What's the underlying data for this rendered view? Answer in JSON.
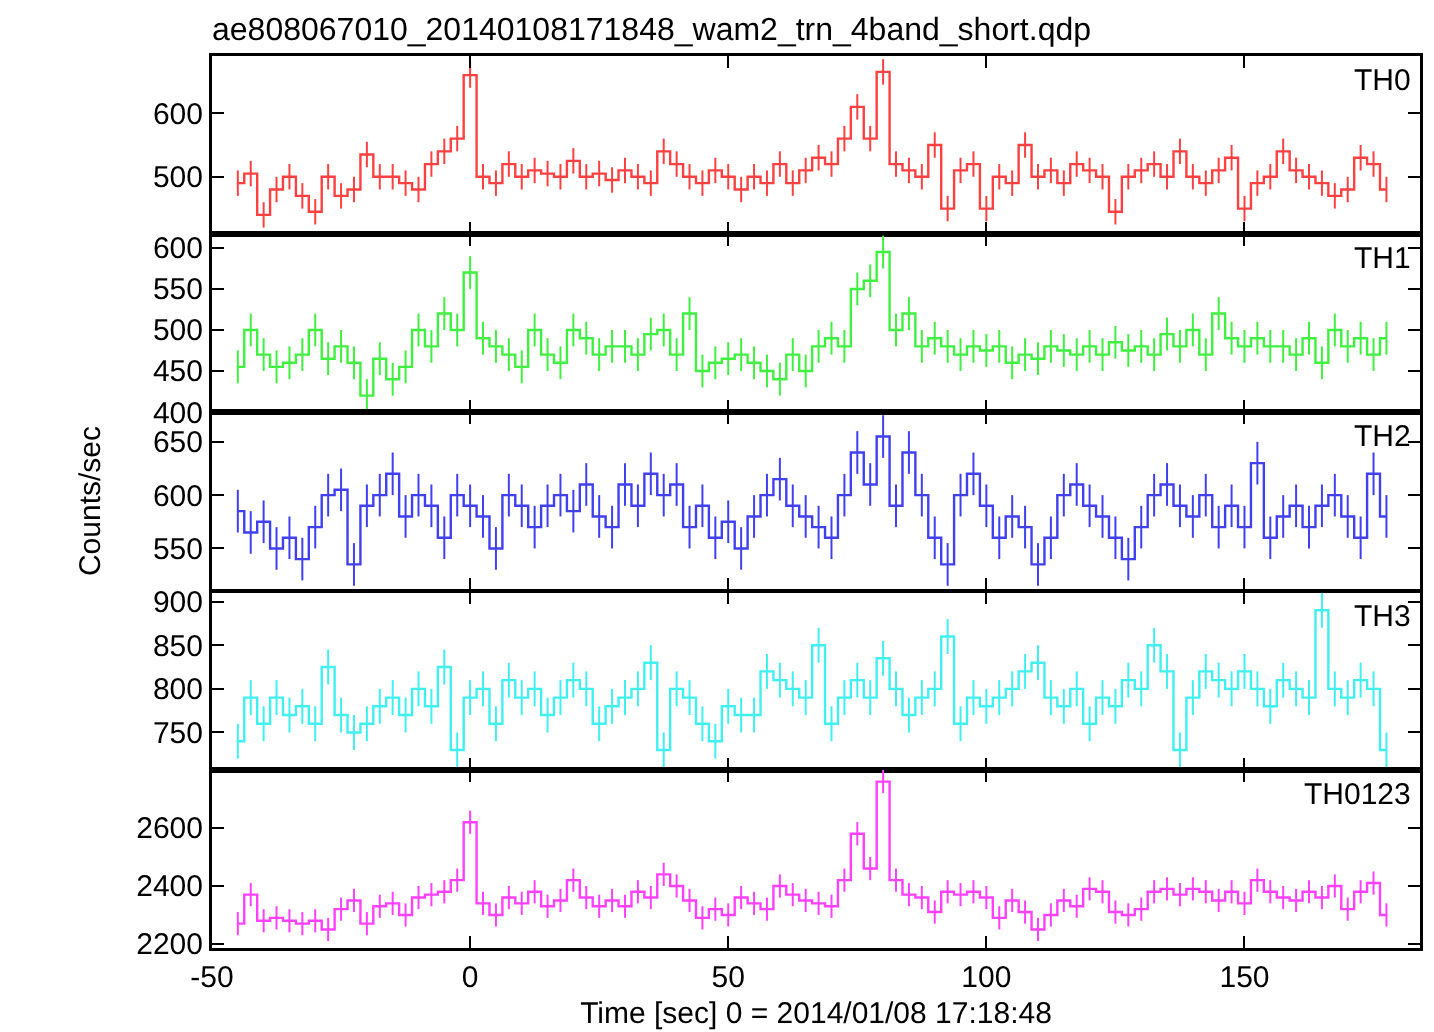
{
  "chart_data": [
    {
      "type": "step",
      "title": "ae808067010_20140108171848_wam2_trn_4band_short.qdp",
      "annotations": [
        "TH0"
      ],
      "tick_labels": "y",
      "xlim": [
        -50,
        184
      ],
      "xticks": [
        -50,
        0,
        50,
        100,
        150
      ],
      "ylim": [
        410,
        690
      ],
      "yticks": [
        500,
        600
      ],
      "x": [
        -45,
        -42.5,
        -40,
        -37.5,
        -35,
        -32.5,
        -30,
        -27.5,
        -25,
        -22.5,
        -20,
        -17.5,
        -15,
        -12.5,
        -10,
        -7.5,
        -5,
        -2.5,
        0,
        2.5,
        5,
        7.5,
        10,
        12.5,
        15,
        17.5,
        20,
        22.5,
        25,
        27.5,
        30,
        32.5,
        35,
        37.5,
        40,
        42.5,
        45,
        47.5,
        50,
        52.5,
        55,
        57.5,
        60,
        62.5,
        65,
        67.5,
        70,
        72.5,
        75,
        77.5,
        80,
        82.5,
        85,
        87.5,
        90,
        92.5,
        95,
        97.5,
        100,
        102.5,
        105,
        107.5,
        110,
        112.5,
        115,
        117.5,
        120,
        122.5,
        125,
        127.5,
        130,
        132.5,
        135,
        137.5,
        140,
        142.5,
        145,
        147.5,
        150,
        152.5,
        155,
        157.5,
        160,
        162.5,
        165,
        167.5,
        170,
        172.5,
        175,
        177.5
      ],
      "series": [
        {
          "color": "#ff4040",
          "values": [
            490,
            505,
            440,
            480,
            500,
            470,
            445,
            500,
            470,
            480,
            535,
            500,
            500,
            490,
            480,
            520,
            540,
            560,
            660,
            500,
            490,
            520,
            500,
            510,
            505,
            500,
            525,
            500,
            505,
            495,
            510,
            500,
            490,
            540,
            520,
            500,
            490,
            510,
            500,
            480,
            500,
            490,
            520,
            490,
            510,
            530,
            520,
            560,
            610,
            560,
            665,
            520,
            510,
            500,
            550,
            450,
            510,
            520,
            450,
            500,
            490,
            550,
            500,
            510,
            490,
            520,
            510,
            500,
            445,
            500,
            510,
            520,
            500,
            540,
            500,
            490,
            510,
            530,
            450,
            490,
            500,
            540,
            510,
            500,
            490,
            470,
            480,
            530,
            520,
            480
          ],
          "errors": [
            20,
            20,
            20,
            20,
            20,
            20,
            20,
            20,
            20,
            20,
            20,
            20,
            20,
            20,
            20,
            20,
            20,
            20,
            20,
            20,
            20,
            20,
            20,
            20,
            20,
            20,
            20,
            20,
            20,
            20,
            20,
            20,
            20,
            20,
            20,
            20,
            20,
            20,
            20,
            20,
            20,
            20,
            20,
            20,
            20,
            20,
            20,
            20,
            20,
            20,
            20,
            20,
            20,
            20,
            20,
            20,
            20,
            20,
            20,
            20,
            20,
            20,
            20,
            20,
            20,
            20,
            20,
            20,
            20,
            20,
            20,
            20,
            20,
            20,
            20,
            20,
            20,
            20,
            20,
            20,
            20,
            20,
            20,
            20,
            20,
            20,
            20,
            20,
            20,
            20
          ]
        }
      ]
    },
    {
      "type": "step",
      "annotations": [
        "TH1"
      ],
      "tick_labels": "y",
      "xlim": [
        -50,
        184
      ],
      "xticks": [
        -50,
        0,
        50,
        100,
        150
      ],
      "ylim": [
        400,
        617
      ],
      "yticks": [
        400,
        450,
        500,
        550,
        600
      ],
      "x": [
        -45,
        -42.5,
        -40,
        -37.5,
        -35,
        -32.5,
        -30,
        -27.5,
        -25,
        -22.5,
        -20,
        -17.5,
        -15,
        -12.5,
        -10,
        -7.5,
        -5,
        -2.5,
        0,
        2.5,
        5,
        7.5,
        10,
        12.5,
        15,
        17.5,
        20,
        22.5,
        25,
        27.5,
        30,
        32.5,
        35,
        37.5,
        40,
        42.5,
        45,
        47.5,
        50,
        52.5,
        55,
        57.5,
        60,
        62.5,
        65,
        67.5,
        70,
        72.5,
        75,
        77.5,
        80,
        82.5,
        85,
        87.5,
        90,
        92.5,
        95,
        97.5,
        100,
        102.5,
        105,
        107.5,
        110,
        112.5,
        115,
        117.5,
        120,
        122.5,
        125,
        127.5,
        130,
        132.5,
        135,
        137.5,
        140,
        142.5,
        145,
        147.5,
        150,
        152.5,
        155,
        157.5,
        160,
        162.5,
        165,
        167.5,
        170,
        172.5,
        175,
        177.5
      ],
      "series": [
        {
          "color": "#40f040",
          "values": [
            455,
            500,
            470,
            455,
            460,
            470,
            500,
            465,
            480,
            460,
            420,
            465,
            440,
            455,
            500,
            480,
            520,
            500,
            570,
            490,
            480,
            470,
            455,
            500,
            470,
            460,
            500,
            490,
            470,
            480,
            480,
            470,
            495,
            500,
            470,
            520,
            450,
            460,
            465,
            470,
            460,
            450,
            440,
            470,
            450,
            480,
            490,
            480,
            550,
            560,
            595,
            500,
            520,
            480,
            490,
            480,
            470,
            480,
            475,
            480,
            460,
            470,
            465,
            480,
            475,
            470,
            480,
            470,
            485,
            475,
            480,
            470,
            495,
            480,
            500,
            470,
            520,
            490,
            480,
            490,
            480,
            480,
            470,
            490,
            460,
            500,
            480,
            490,
            470,
            490
          ],
          "errors": [
            20,
            20,
            20,
            20,
            20,
            20,
            20,
            20,
            20,
            20,
            20,
            20,
            20,
            20,
            20,
            20,
            20,
            20,
            20,
            20,
            20,
            20,
            20,
            20,
            20,
            20,
            20,
            20,
            20,
            20,
            20,
            20,
            20,
            20,
            20,
            20,
            20,
            20,
            20,
            20,
            20,
            20,
            20,
            20,
            20,
            20,
            20,
            20,
            20,
            20,
            20,
            20,
            20,
            20,
            20,
            20,
            20,
            20,
            20,
            20,
            20,
            20,
            20,
            20,
            20,
            20,
            20,
            20,
            20,
            20,
            20,
            20,
            20,
            20,
            20,
            20,
            20,
            20,
            20,
            20,
            20,
            20,
            20,
            20,
            20,
            20,
            20,
            20,
            20,
            20
          ]
        }
      ]
    },
    {
      "type": "step",
      "annotations": [
        "TH2"
      ],
      "ylabel": "Counts/sec",
      "tick_labels": "y",
      "xlim": [
        -50,
        184
      ],
      "xticks": [
        -50,
        0,
        50,
        100,
        150
      ],
      "ylim": [
        511,
        678
      ],
      "yticks": [
        550,
        600,
        650
      ],
      "x": [
        -45,
        -42.5,
        -40,
        -37.5,
        -35,
        -32.5,
        -30,
        -27.5,
        -25,
        -22.5,
        -20,
        -17.5,
        -15,
        -12.5,
        -10,
        -7.5,
        -5,
        -2.5,
        0,
        2.5,
        5,
        7.5,
        10,
        12.5,
        15,
        17.5,
        20,
        22.5,
        25,
        27.5,
        30,
        32.5,
        35,
        37.5,
        40,
        42.5,
        45,
        47.5,
        50,
        52.5,
        55,
        57.5,
        60,
        62.5,
        65,
        67.5,
        70,
        72.5,
        75,
        77.5,
        80,
        82.5,
        85,
        87.5,
        90,
        92.5,
        95,
        97.5,
        100,
        102.5,
        105,
        107.5,
        110,
        112.5,
        115,
        117.5,
        120,
        122.5,
        125,
        127.5,
        130,
        132.5,
        135,
        137.5,
        140,
        142.5,
        145,
        147.5,
        150,
        152.5,
        155,
        157.5,
        160,
        162.5,
        165,
        167.5,
        170,
        172.5,
        175,
        177.5
      ],
      "series": [
        {
          "color": "#4040f0",
          "values": [
            585,
            565,
            575,
            550,
            560,
            540,
            570,
            600,
            605,
            535,
            590,
            600,
            620,
            580,
            600,
            590,
            560,
            600,
            590,
            580,
            550,
            600,
            590,
            570,
            590,
            600,
            585,
            610,
            580,
            570,
            610,
            590,
            620,
            600,
            610,
            570,
            590,
            560,
            575,
            550,
            580,
            600,
            615,
            590,
            580,
            570,
            560,
            600,
            640,
            610,
            655,
            590,
            640,
            600,
            560,
            535,
            600,
            620,
            590,
            560,
            580,
            570,
            535,
            560,
            600,
            610,
            590,
            580,
            560,
            540,
            570,
            600,
            610,
            590,
            580,
            600,
            570,
            590,
            570,
            630,
            560,
            580,
            590,
            570,
            590,
            600,
            580,
            560,
            620,
            580
          ],
          "errors": [
            20,
            20,
            20,
            20,
            20,
            20,
            20,
            20,
            20,
            20,
            20,
            20,
            20,
            20,
            20,
            20,
            20,
            20,
            20,
            20,
            20,
            20,
            20,
            20,
            20,
            20,
            20,
            20,
            20,
            20,
            20,
            20,
            20,
            20,
            20,
            20,
            20,
            20,
            20,
            20,
            20,
            20,
            20,
            20,
            20,
            20,
            20,
            20,
            20,
            20,
            20,
            20,
            20,
            20,
            20,
            20,
            20,
            20,
            20,
            20,
            20,
            20,
            20,
            20,
            20,
            20,
            20,
            20,
            20,
            20,
            20,
            20,
            20,
            20,
            20,
            20,
            20,
            20,
            20,
            20,
            20,
            20,
            20,
            20,
            20,
            20,
            20,
            20,
            20,
            20
          ]
        }
      ]
    },
    {
      "type": "step",
      "annotations": [
        "TH3"
      ],
      "tick_labels": "y",
      "xlim": [
        -50,
        184
      ],
      "xticks": [
        -50,
        0,
        50,
        100,
        150
      ],
      "ylim": [
        707,
        911
      ],
      "yticks": [
        750,
        800,
        850,
        900
      ],
      "x": [
        -45,
        -42.5,
        -40,
        -37.5,
        -35,
        -32.5,
        -30,
        -27.5,
        -25,
        -22.5,
        -20,
        -17.5,
        -15,
        -12.5,
        -10,
        -7.5,
        -5,
        -2.5,
        0,
        2.5,
        5,
        7.5,
        10,
        12.5,
        15,
        17.5,
        20,
        22.5,
        25,
        27.5,
        30,
        32.5,
        35,
        37.5,
        40,
        42.5,
        45,
        47.5,
        50,
        52.5,
        55,
        57.5,
        60,
        62.5,
        65,
        67.5,
        70,
        72.5,
        75,
        77.5,
        80,
        82.5,
        85,
        87.5,
        90,
        92.5,
        95,
        97.5,
        100,
        102.5,
        105,
        107.5,
        110,
        112.5,
        115,
        117.5,
        120,
        122.5,
        125,
        127.5,
        130,
        132.5,
        135,
        137.5,
        140,
        142.5,
        145,
        147.5,
        150,
        152.5,
        155,
        157.5,
        160,
        162.5,
        165,
        167.5,
        170,
        172.5,
        175,
        177.5
      ],
      "series": [
        {
          "color": "#40f0f0",
          "values": [
            740,
            790,
            760,
            790,
            770,
            780,
            760,
            825,
            770,
            750,
            760,
            780,
            790,
            770,
            800,
            780,
            825,
            730,
            790,
            800,
            760,
            810,
            790,
            800,
            770,
            790,
            810,
            800,
            760,
            780,
            790,
            800,
            830,
            730,
            800,
            790,
            760,
            740,
            780,
            770,
            770,
            820,
            810,
            800,
            790,
            850,
            760,
            790,
            810,
            790,
            835,
            800,
            770,
            790,
            800,
            860,
            760,
            790,
            780,
            790,
            800,
            820,
            830,
            790,
            780,
            800,
            760,
            790,
            780,
            810,
            800,
            850,
            820,
            730,
            790,
            820,
            810,
            800,
            820,
            800,
            780,
            810,
            800,
            790,
            890,
            800,
            790,
            810,
            800,
            730
          ],
          "errors": [
            20,
            20,
            20,
            20,
            20,
            20,
            20,
            20,
            20,
            20,
            20,
            20,
            20,
            20,
            20,
            20,
            20,
            20,
            20,
            20,
            20,
            20,
            20,
            20,
            20,
            20,
            20,
            20,
            20,
            20,
            20,
            20,
            20,
            20,
            20,
            20,
            20,
            20,
            20,
            20,
            20,
            20,
            20,
            20,
            20,
            20,
            20,
            20,
            20,
            20,
            20,
            20,
            20,
            20,
            20,
            20,
            20,
            20,
            20,
            20,
            20,
            20,
            20,
            20,
            20,
            20,
            20,
            20,
            20,
            20,
            20,
            20,
            20,
            20,
            20,
            20,
            20,
            20,
            20,
            20,
            20,
            20,
            20,
            20,
            20,
            20,
            20,
            20,
            20,
            20
          ]
        }
      ]
    },
    {
      "type": "step",
      "annotations": [
        "TH0123"
      ],
      "xlabel": "Time [sec] 0 = 2014/01/08 17:18:48",
      "xlim": [
        -50,
        184
      ],
      "xticks": [
        -50,
        0,
        50,
        100,
        150
      ],
      "ylim": [
        2186,
        2800
      ],
      "yticks": [
        2200,
        2400,
        2600
      ],
      "x": [
        -45,
        -42.5,
        -40,
        -37.5,
        -35,
        -32.5,
        -30,
        -27.5,
        -25,
        -22.5,
        -20,
        -17.5,
        -15,
        -12.5,
        -10,
        -7.5,
        -5,
        -2.5,
        0,
        2.5,
        5,
        7.5,
        10,
        12.5,
        15,
        17.5,
        20,
        22.5,
        25,
        27.5,
        30,
        32.5,
        35,
        37.5,
        40,
        42.5,
        45,
        47.5,
        50,
        52.5,
        55,
        57.5,
        60,
        62.5,
        65,
        67.5,
        70,
        72.5,
        75,
        77.5,
        80,
        82.5,
        85,
        87.5,
        90,
        92.5,
        95,
        97.5,
        100,
        102.5,
        105,
        107.5,
        110,
        112.5,
        115,
        117.5,
        120,
        122.5,
        125,
        127.5,
        130,
        132.5,
        135,
        137.5,
        140,
        142.5,
        145,
        147.5,
        150,
        152.5,
        155,
        157.5,
        160,
        162.5,
        165,
        167.5,
        170,
        172.5,
        175,
        177.5
      ],
      "series": [
        {
          "color": "#ff40ff",
          "values": [
            2270,
            2370,
            2280,
            2290,
            2280,
            2270,
            2280,
            2250,
            2320,
            2350,
            2270,
            2330,
            2340,
            2300,
            2360,
            2370,
            2380,
            2420,
            2620,
            2340,
            2300,
            2360,
            2340,
            2380,
            2330,
            2350,
            2420,
            2360,
            2330,
            2350,
            2330,
            2380,
            2360,
            2440,
            2400,
            2350,
            2290,
            2320,
            2300,
            2360,
            2340,
            2320,
            2400,
            2370,
            2350,
            2340,
            2330,
            2420,
            2580,
            2460,
            2760,
            2420,
            2370,
            2360,
            2310,
            2380,
            2370,
            2380,
            2360,
            2290,
            2350,
            2310,
            2250,
            2300,
            2350,
            2330,
            2390,
            2380,
            2310,
            2300,
            2320,
            2380,
            2390,
            2370,
            2390,
            2380,
            2350,
            2380,
            2340,
            2420,
            2380,
            2360,
            2350,
            2380,
            2360,
            2400,
            2320,
            2380,
            2410,
            2300
          ],
          "errors": [
            40,
            40,
            40,
            40,
            40,
            40,
            40,
            40,
            40,
            40,
            40,
            40,
            40,
            40,
            40,
            40,
            40,
            40,
            40,
            40,
            40,
            40,
            40,
            40,
            40,
            40,
            40,
            40,
            40,
            40,
            40,
            40,
            40,
            40,
            40,
            40,
            40,
            40,
            40,
            40,
            40,
            40,
            40,
            40,
            40,
            40,
            40,
            40,
            40,
            40,
            40,
            40,
            40,
            40,
            40,
            40,
            40,
            40,
            40,
            40,
            40,
            40,
            40,
            40,
            40,
            40,
            40,
            40,
            40,
            40,
            40,
            40,
            40,
            40,
            40,
            40,
            40,
            40,
            40,
            40,
            40,
            40,
            40,
            40,
            40,
            40,
            40,
            40,
            40,
            40
          ]
        }
      ]
    }
  ]
}
